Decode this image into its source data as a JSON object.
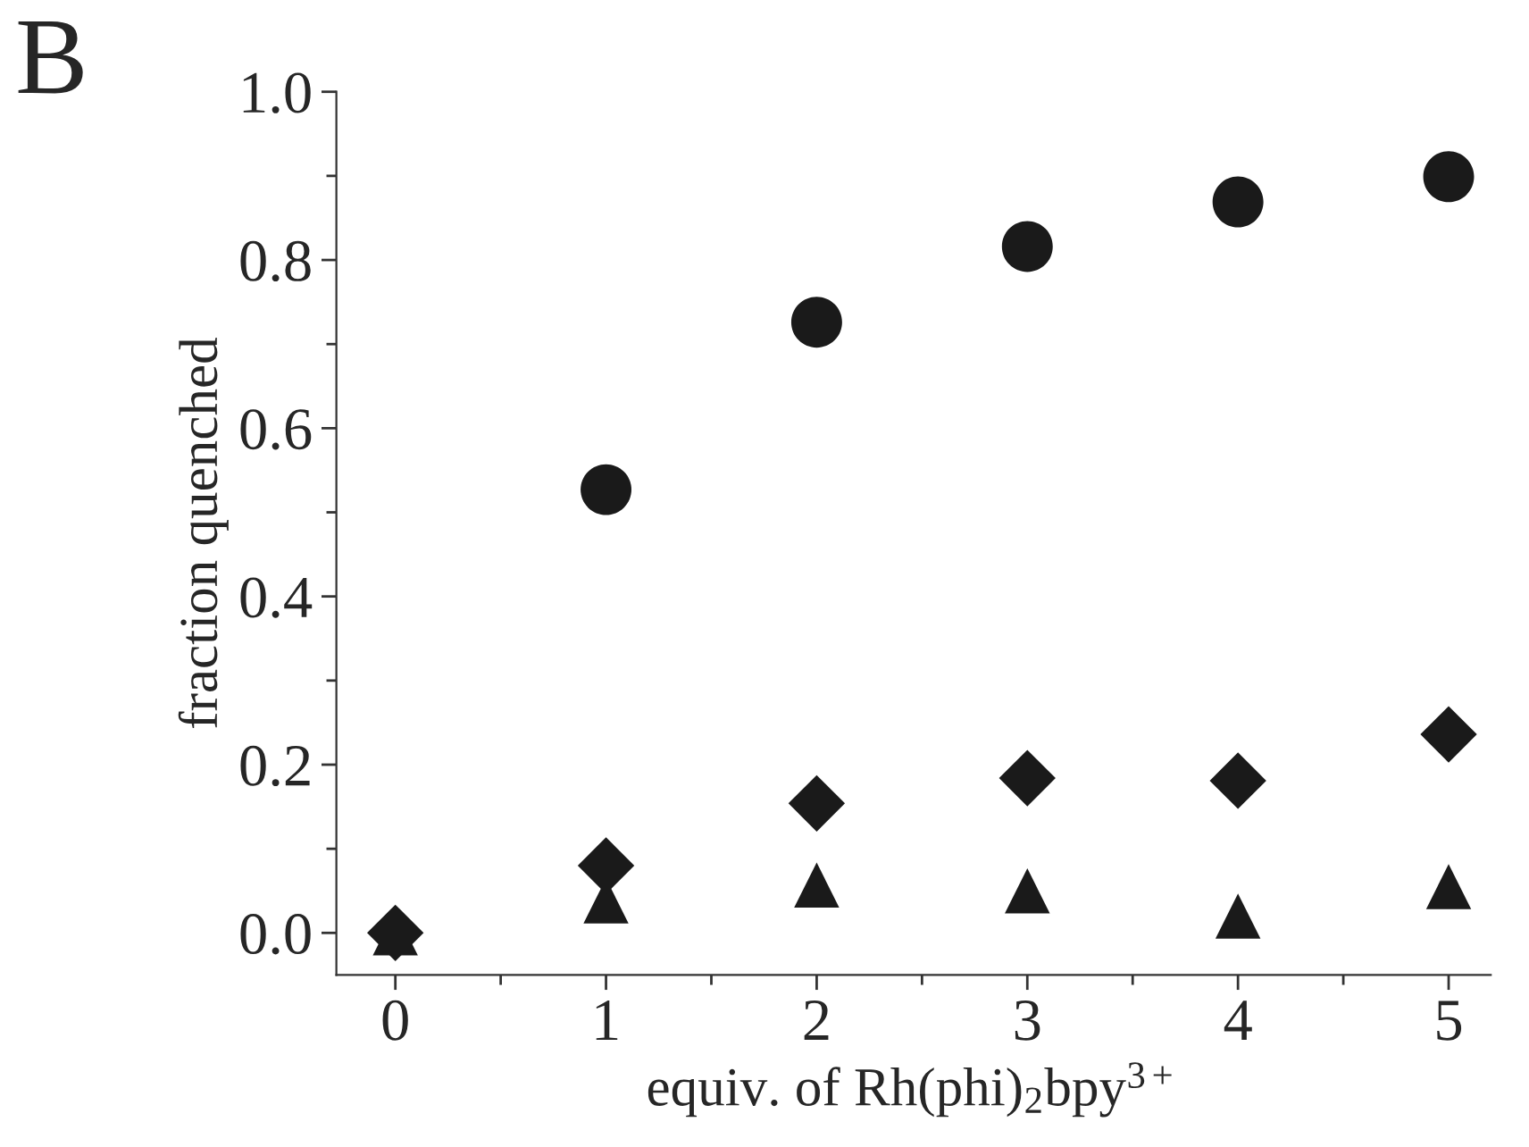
{
  "chart_data": {
    "type": "scatter",
    "xlabel": "equiv. of Rh(phi)$_{2}$bpy$^{3+}$",
    "ylabel": "fraction quenched",
    "annotations": [
      "B"
    ],
    "x": [
      0,
      1,
      2,
      3,
      4,
      5
    ],
    "series": [
      {
        "color": "#1a1a1a",
        "marker": "circle",
        "values": [
          null,
          0.527,
          0.726,
          0.816,
          0.869,
          0.899
        ]
      },
      {
        "color": "#1a1a1a",
        "marker": "triangle",
        "values": [
          0.0,
          0.038,
          0.057,
          0.05,
          0.02,
          0.055
        ]
      },
      {
        "color": "#1a1a1a",
        "marker": "diamond",
        "values": [
          0.0,
          0.08,
          0.154,
          0.184,
          0.181,
          0.236
        ]
      }
    ],
    "xlim": [
      -0.28,
      5.2
    ],
    "ylim": [
      -0.05,
      1.0
    ],
    "xticks": [
      0,
      1,
      2,
      3,
      4,
      5
    ],
    "yticks": [
      {
        "value": 0,
        "label": "0.0"
      },
      0.2,
      0.4,
      0.6,
      0.8,
      {
        "value": 1,
        "label": "1.0"
      }
    ],
    "grid": false,
    "legend": false
  }
}
